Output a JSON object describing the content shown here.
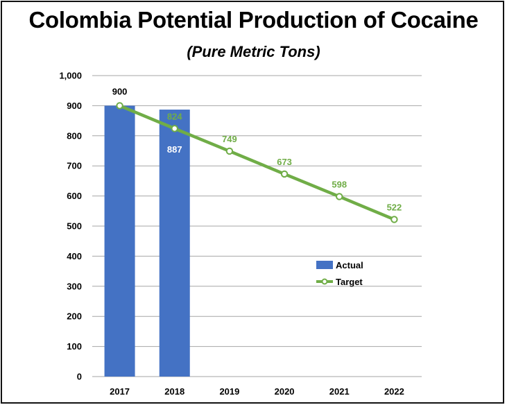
{
  "header": {
    "title": "Colombia Potential Production of Cocaine",
    "subtitle": "(Pure Metric Tons)"
  },
  "colors": {
    "actual": "#4472C4",
    "target": "#70AD47",
    "grid": "#a6a6a6"
  },
  "chart_data": {
    "type": "bar",
    "title": "Colombia Potential Production of Cocaine",
    "subtitle": "(Pure Metric Tons)",
    "categories": [
      "2017",
      "2018",
      "2019",
      "2020",
      "2021",
      "2022"
    ],
    "ylim": [
      0,
      1000
    ],
    "yticks": [
      0,
      100,
      200,
      300,
      400,
      500,
      600,
      700,
      800,
      900,
      1000
    ],
    "ytick_labels": [
      "0",
      "100",
      "200",
      "300",
      "400",
      "500",
      "600",
      "700",
      "800",
      "900",
      "1,000"
    ],
    "grid": true,
    "legend_position": "inside-right",
    "series": [
      {
        "name": "Actual",
        "kind": "bar",
        "color": "#4472C4",
        "values": [
          900,
          887,
          null,
          null,
          null,
          null
        ],
        "labels": [
          "900",
          "887",
          "",
          "",
          "",
          ""
        ]
      },
      {
        "name": "Target",
        "kind": "line",
        "color": "#70AD47",
        "values": [
          900,
          824,
          749,
          673,
          598,
          522
        ],
        "labels": [
          "",
          "824",
          "749",
          "673",
          "598",
          "522"
        ]
      }
    ]
  }
}
